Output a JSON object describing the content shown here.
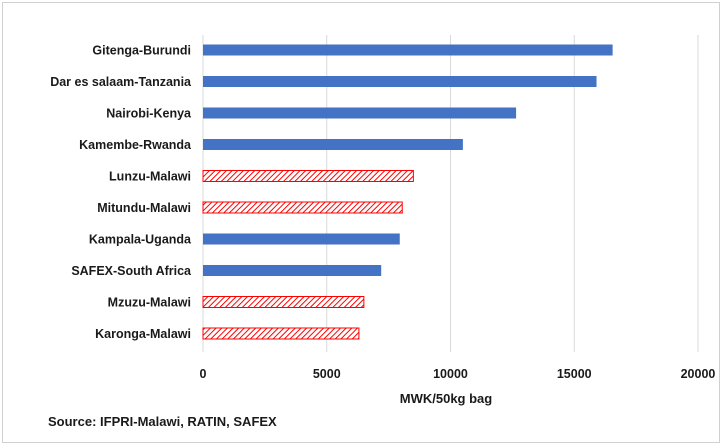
{
  "chart_data": {
    "type": "bar",
    "orientation": "horizontal",
    "categories": [
      "Gitenga-Burundi",
      "Dar es salaam-Tanzania",
      "Nairobi-Kenya",
      "Kamembe-Rwanda",
      "Lunzu-Malawi",
      "Mitundu-Malawi",
      "Kampala-Uganda",
      "SAFEX-South Africa",
      "Mzuzu-Malawi",
      "Karonga-Malawi"
    ],
    "values": [
      16550,
      15900,
      12650,
      10500,
      8500,
      8050,
      7950,
      7200,
      6500,
      6300
    ],
    "styles": [
      "solid",
      "solid",
      "solid",
      "solid",
      "hatched",
      "hatched",
      "solid",
      "solid",
      "hatched",
      "hatched"
    ],
    "xlabel": "MWK/50kg bag",
    "xlim": [
      0,
      20000
    ],
    "xticks": [
      "0",
      "5000",
      "10000",
      "15000",
      "20000"
    ],
    "grid": "vertical",
    "colors": {
      "solid": "#4472c4",
      "hatched": "#ff0000"
    }
  },
  "source": "Source: IFPRI-Malawi, RATIN, SAFEX"
}
